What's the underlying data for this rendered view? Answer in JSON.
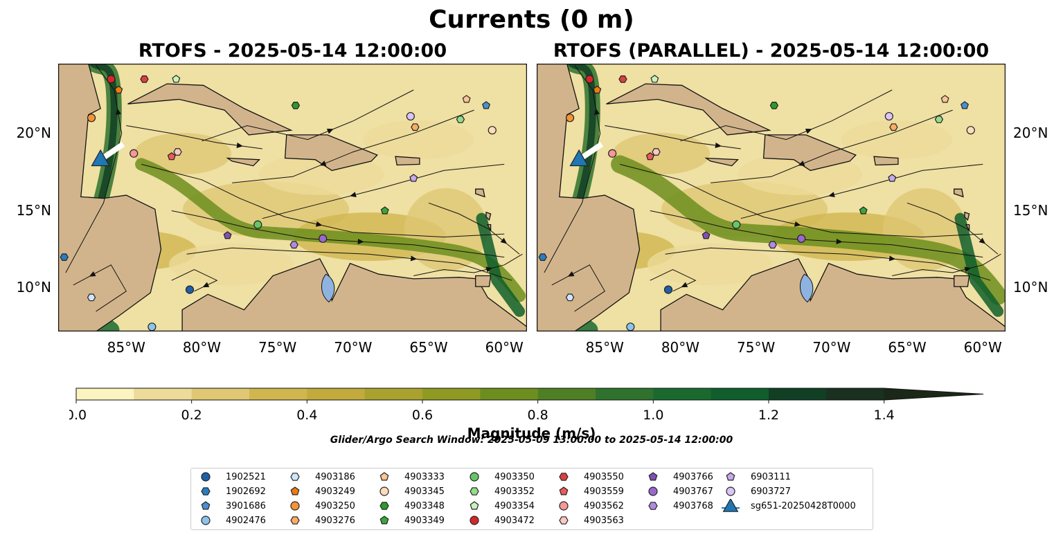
{
  "title": "Currents (0 m)",
  "panels": [
    {
      "title": "RTOFS - 2025-05-14 12:00:00"
    },
    {
      "title": "RTOFS (PARALLEL) - 2025-05-14 12:00:00"
    }
  ],
  "axes": {
    "lon_ticks": [
      "85°W",
      "80°W",
      "75°W",
      "70°W",
      "65°W",
      "60°W"
    ],
    "lon_values": [
      -85,
      -80,
      -75,
      -70,
      -65,
      -60
    ],
    "lat_ticks": [
      "20°N",
      "15°N",
      "10°N"
    ],
    "lat_values": [
      20,
      15,
      10
    ],
    "lon_range": [
      -89.5,
      -58.5
    ],
    "lat_range": [
      7.2,
      24.5
    ]
  },
  "colorbar": {
    "label": "Magnitude (m/s)",
    "ticks": [
      "0.0",
      "0.2",
      "0.4",
      "0.6",
      "0.8",
      "1.0",
      "1.2",
      "1.4"
    ],
    "tick_values": [
      0.0,
      0.2,
      0.4,
      0.6,
      0.8,
      1.0,
      1.2,
      1.4
    ],
    "range": [
      0.0,
      1.5
    ],
    "extend": "max",
    "colors": [
      "#fbf3c0",
      "#ecdb99",
      "#dfc774",
      "#d1b650",
      "#c2aa3c",
      "#aaa22e",
      "#8f9a22",
      "#6d8e1e",
      "#4f7f25",
      "#2f722d",
      "#1a6a30",
      "#0f5e2c",
      "#103f24",
      "#1a3020",
      "#1b2818"
    ]
  },
  "search_window": "Glider/Argo Search Window: 2025-05-09 13:00:00 to 2025-05-14 12:00:00",
  "land_color": "#d2b48c",
  "lake_color": "#8fb3e0",
  "legend": {
    "columns": [
      [
        {
          "label": "1902521",
          "marker": "circle",
          "color": "#1f5fa6"
        },
        {
          "label": "1902692",
          "marker": "hexagon",
          "color": "#2a7cc0"
        },
        {
          "label": "3901686",
          "marker": "pentagon",
          "color": "#4a8fd0"
        },
        {
          "label": "4902476",
          "marker": "circle",
          "color": "#8cc4ec"
        }
      ],
      [
        {
          "label": "4903186",
          "marker": "hexagon",
          "color": "#cfe6fa"
        },
        {
          "label": "4903249",
          "marker": "pentagon",
          "color": "#f07c10"
        },
        {
          "label": "4903250",
          "marker": "circle",
          "color": "#f69334"
        },
        {
          "label": "4903276",
          "marker": "hexagon",
          "color": "#f8ac66"
        }
      ],
      [
        {
          "label": "4903333",
          "marker": "pentagon",
          "color": "#fbc594"
        },
        {
          "label": "4903345",
          "marker": "circle",
          "color": "#fddcbc"
        },
        {
          "label": "4903348",
          "marker": "hexagon",
          "color": "#2c9a2c"
        },
        {
          "label": "4903349",
          "marker": "pentagon",
          "color": "#3aa63a"
        }
      ],
      [
        {
          "label": "4903350",
          "marker": "circle",
          "color": "#66c666"
        },
        {
          "label": "4903352",
          "marker": "hexagon",
          "color": "#94db8a"
        },
        {
          "label": "4903354",
          "marker": "pentagon",
          "color": "#c7f2bf"
        },
        {
          "label": "4903472",
          "marker": "circle",
          "color": "#d62728"
        }
      ],
      [
        {
          "label": "4903550",
          "marker": "hexagon",
          "color": "#d94040"
        },
        {
          "label": "4903559",
          "marker": "pentagon",
          "color": "#ec5a5a"
        },
        {
          "label": "4903562",
          "marker": "circle",
          "color": "#f49898"
        },
        {
          "label": "4903563",
          "marker": "hexagon",
          "color": "#fbc8c4"
        }
      ],
      [
        {
          "label": "4903766",
          "marker": "pentagon",
          "color": "#7e52b4"
        },
        {
          "label": "4903767",
          "marker": "circle",
          "color": "#9a68cc"
        },
        {
          "label": "4903768",
          "marker": "hexagon",
          "color": "#b08ae0"
        }
      ],
      [
        {
          "label": "6903111",
          "marker": "pentagon",
          "color": "#c6a8ec"
        },
        {
          "label": "6903727",
          "marker": "circle",
          "color": "#dcc4f6"
        },
        {
          "label": "sg651-20250428T0000",
          "marker": "triangle",
          "color": "#1f77b4"
        }
      ]
    ]
  },
  "markers": [
    {
      "label": "4903472",
      "marker": "circle",
      "color": "#d62728",
      "lon": -86.0,
      "lat": 23.5
    },
    {
      "label": "4903550",
      "marker": "hexagon",
      "color": "#d94040",
      "lon": -83.8,
      "lat": 23.5
    },
    {
      "label": "4903354",
      "marker": "pentagon",
      "color": "#c7f2bf",
      "lon": -81.7,
      "lat": 23.5
    },
    {
      "label": "4903249",
      "marker": "pentagon",
      "color": "#f07c10",
      "lon": -85.5,
      "lat": 22.8
    },
    {
      "label": "4903250",
      "marker": "circle",
      "color": "#f69334",
      "lon": -87.3,
      "lat": 21.0
    },
    {
      "label": "4903348",
      "marker": "hexagon",
      "color": "#2c9a2c",
      "lon": -73.8,
      "lat": 21.8
    },
    {
      "label": "4903333",
      "marker": "pentagon",
      "color": "#fbc594",
      "lon": -62.5,
      "lat": 22.2
    },
    {
      "label": "3901686",
      "marker": "pentagon",
      "color": "#4a8fd0",
      "lon": -61.2,
      "lat": 21.8
    },
    {
      "label": "6903727",
      "marker": "circle",
      "color": "#dcc4f6",
      "lon": -66.2,
      "lat": 21.1
    },
    {
      "label": "4903352",
      "marker": "hexagon",
      "color": "#94db8a",
      "lon": -62.9,
      "lat": 20.9
    },
    {
      "label": "4903276",
      "marker": "hexagon",
      "color": "#f8ac66",
      "lon": -65.9,
      "lat": 20.4
    },
    {
      "label": "4903345",
      "marker": "circle",
      "color": "#fddcbc",
      "lon": -60.8,
      "lat": 20.2
    },
    {
      "label": "4903562",
      "marker": "circle",
      "color": "#f49898",
      "lon": -84.5,
      "lat": 18.7
    },
    {
      "label": "4903559",
      "marker": "pentagon",
      "color": "#ec5a5a",
      "lon": -82.0,
      "lat": 18.5
    },
    {
      "label": "4903563",
      "marker": "hexagon",
      "color": "#fbc8c4",
      "lon": -81.6,
      "lat": 18.8
    },
    {
      "label": "6903111",
      "marker": "pentagon",
      "color": "#c6a8ec",
      "lon": -66.0,
      "lat": 17.1
    },
    {
      "label": "4903349",
      "marker": "pentagon",
      "color": "#3aa63a",
      "lon": -67.9,
      "lat": 15.0
    },
    {
      "label": "4903350",
      "marker": "circle",
      "color": "#66c666",
      "lon": -76.3,
      "lat": 14.1
    },
    {
      "label": "4903766",
      "marker": "pentagon",
      "color": "#7e52b4",
      "lon": -78.3,
      "lat": 13.4
    },
    {
      "label": "4903768",
      "marker": "hexagon",
      "color": "#b08ae0",
      "lon": -73.9,
      "lat": 12.8
    },
    {
      "label": "4903767",
      "marker": "circle",
      "color": "#9a68cc",
      "lon": -72.0,
      "lat": 13.2
    },
    {
      "label": "1902692",
      "marker": "hexagon",
      "color": "#2a7cc0",
      "lon": -89.1,
      "lat": 12.0
    },
    {
      "label": "1902521",
      "marker": "circle",
      "color": "#1f5fa6",
      "lon": -80.8,
      "lat": 9.9
    },
    {
      "label": "4903186",
      "marker": "hexagon",
      "color": "#cfe6fa",
      "lon": -87.3,
      "lat": 9.4
    },
    {
      "label": "4902476",
      "marker": "circle",
      "color": "#8cc4ec",
      "lon": -83.3,
      "lat": 7.5
    },
    {
      "label": "sg651-20250428T0000",
      "marker": "triangle",
      "color": "#1f77b4",
      "lon": -86.7,
      "lat": 18.3
    }
  ]
}
